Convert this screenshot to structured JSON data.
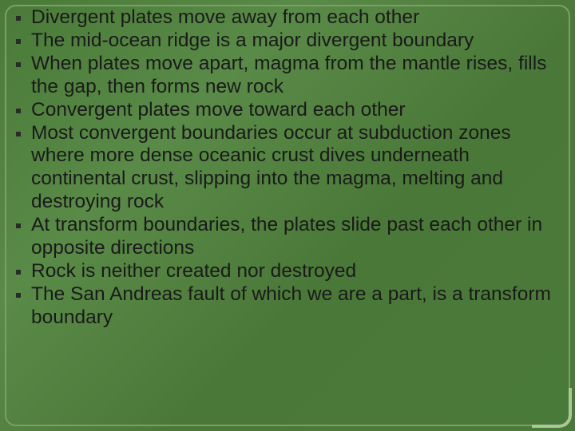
{
  "slide": {
    "background_color": "#4a7a3a",
    "inner_border_color": "#7aa068",
    "corner_accent_color": "#a8c898",
    "text_color": "#1a1a1a",
    "font_family": "Arial",
    "font_size_pt": 24,
    "bullet_color": "#2a2a2a",
    "bullets": [
      "Divergent plates move away from each other",
      "The mid-ocean ridge is a major divergent boundary",
      "When plates move apart, magma from the mantle rises, fills the gap, then forms new rock",
      "Convergent plates move toward each other",
      "Most convergent boundaries occur at subduction zones where more dense oceanic crust dives underneath continental crust, slipping into the magma, melting and destroying rock",
      "At transform boundaries, the plates slide past each other in opposite directions",
      "Rock is neither created nor destroyed",
      "The San Andreas fault of which we are a part, is a transform boundary"
    ]
  }
}
